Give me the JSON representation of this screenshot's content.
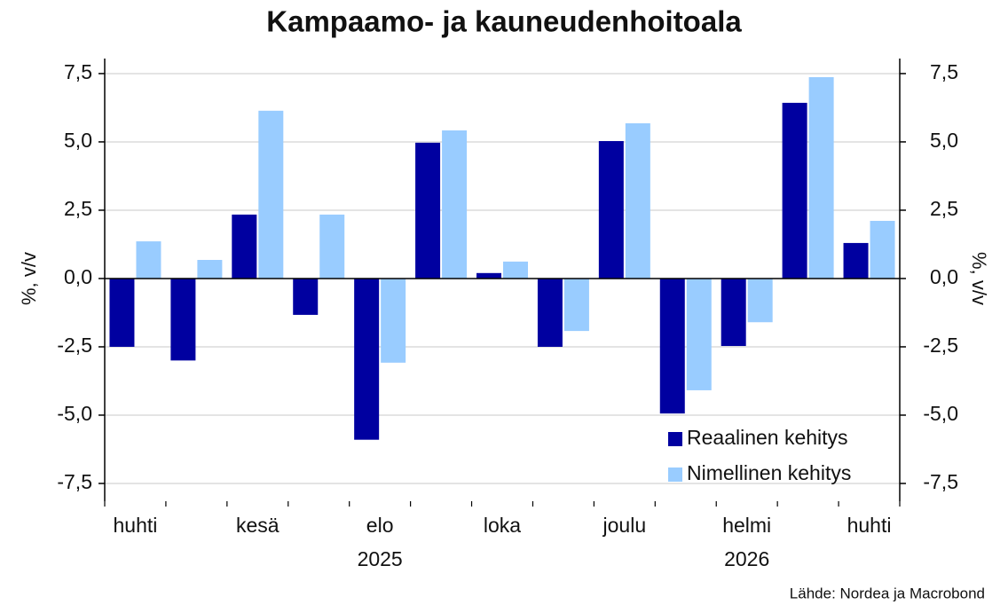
{
  "chart_data": {
    "type": "bar",
    "title": "Kampaamo- ja kauneudenhoitoala",
    "y_label": "%, v/v",
    "y2_label": "%, v/v",
    "source": "Lähde: Nordea ja Macrobond",
    "categories": [
      "huhti",
      null,
      "kesä",
      null,
      "elo",
      null,
      "loka",
      null,
      "joulu",
      null,
      "helmi",
      null,
      "huhti"
    ],
    "annotations": [
      "2025",
      "2026"
    ],
    "series": [
      {
        "name": "Reaalinen kehitys",
        "color": "#0000a0",
        "values": [
          -2.5,
          -3.0,
          2.34,
          -1.33,
          -5.9,
          4.97,
          0.2,
          -2.5,
          5.03,
          -4.94,
          -2.47,
          6.43,
          1.3
        ]
      },
      {
        "name": "Nimellinen kehitys",
        "color": "#99ccff",
        "values": [
          1.36,
          0.68,
          6.14,
          2.34,
          -3.08,
          5.42,
          0.62,
          -1.92,
          5.68,
          -4.09,
          -1.6,
          7.37,
          2.11
        ]
      }
    ],
    "ylim": [
      -8.15,
      8.05
    ],
    "yticks": [
      {
        "value": -7.5,
        "label": "-7,5"
      },
      {
        "value": -5,
        "label": "-5,0"
      },
      {
        "value": -2.5,
        "label": "-2,5"
      },
      {
        "value": 0,
        "label": "0,0"
      },
      {
        "value": 2.5,
        "label": "2,5"
      },
      {
        "value": 5,
        "label": "5,0"
      },
      {
        "value": 7.5,
        "label": "7,5"
      }
    ],
    "y2lim": [
      -8.15,
      8.05
    ],
    "y2ticks": [
      {
        "value": -7.5,
        "label": "-7,5"
      },
      {
        "value": -5,
        "label": "-5,0"
      },
      {
        "value": -2.5,
        "label": "-2,5"
      },
      {
        "value": 0,
        "label": "0,0"
      },
      {
        "value": 2.5,
        "label": "2,5"
      },
      {
        "value": 5,
        "label": "5,0"
      },
      {
        "value": 7.5,
        "label": "7,5"
      }
    ],
    "grid": true,
    "legend": "lower right"
  }
}
